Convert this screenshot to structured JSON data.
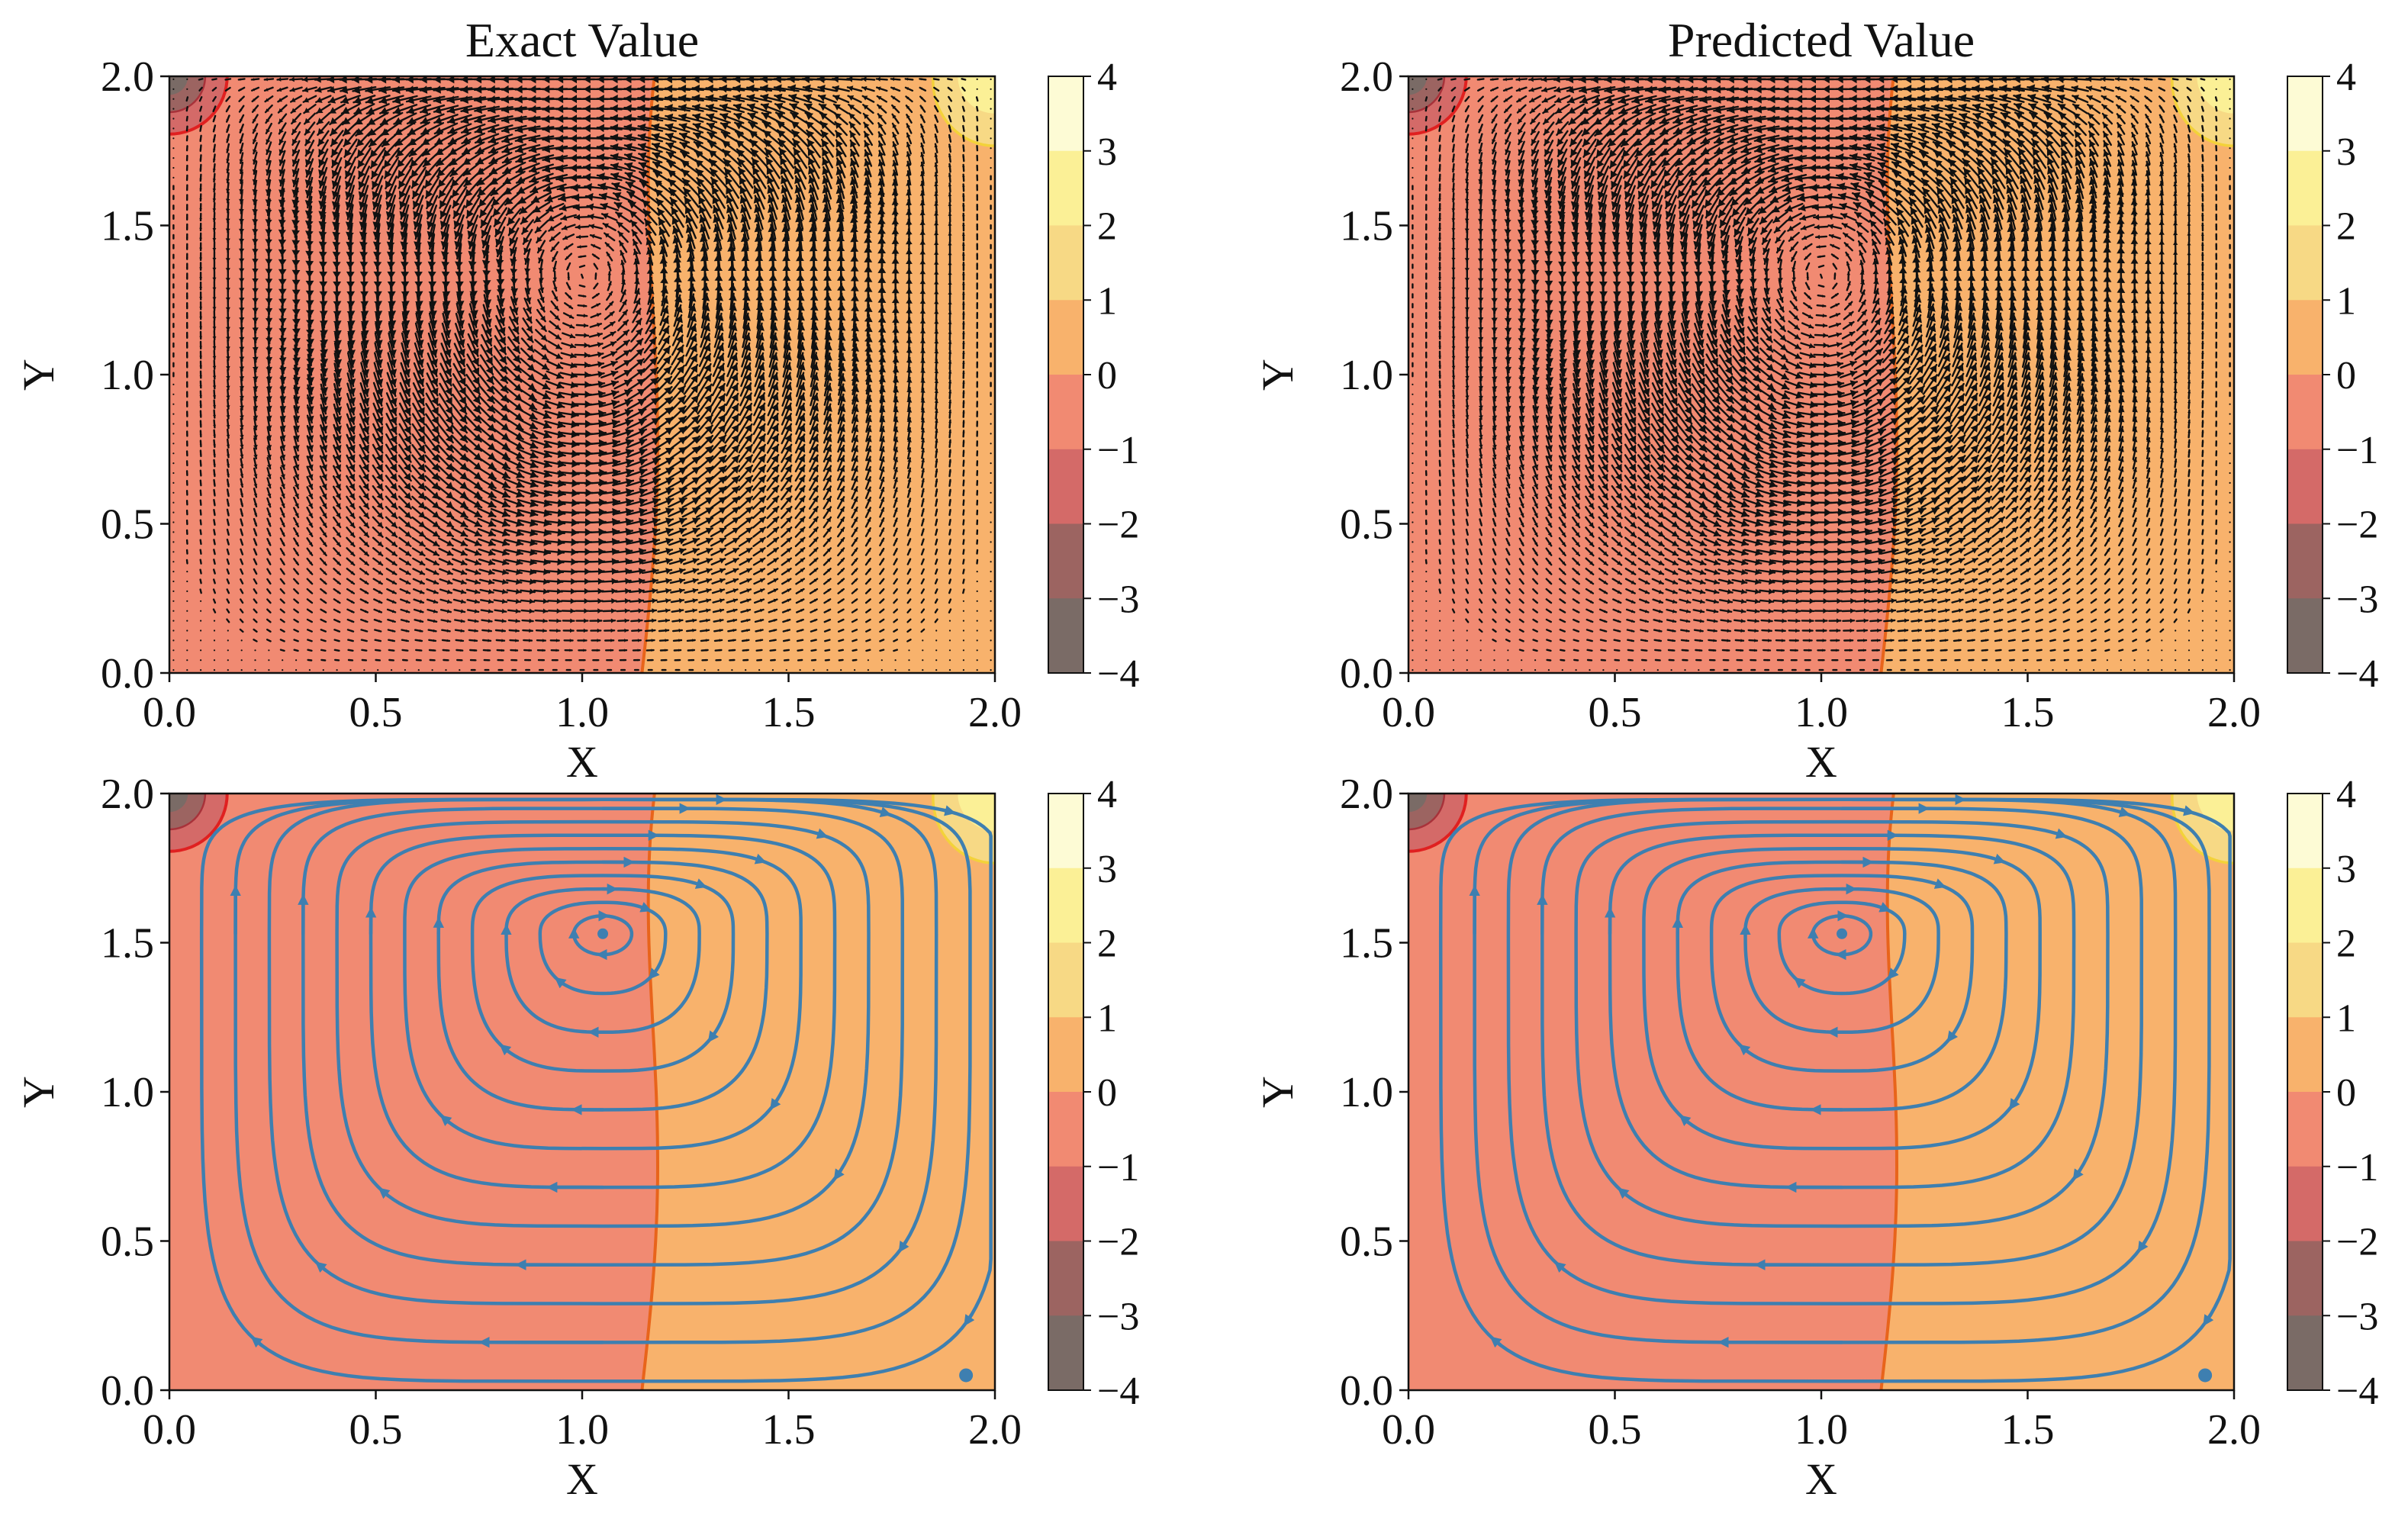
{
  "figure": {
    "colorbar_ticks": [
      "4",
      "3",
      "2",
      "1",
      "0",
      "−1",
      "−2",
      "−3",
      "−4"
    ],
    "colormap": "YlOrRd (alpha 0.6)",
    "quiver_color": "#111111",
    "streamline_color": "#3e7fb0",
    "zero_contour_color": "#e8641b",
    "low_contour_color": "#e02020",
    "high_contour_color": "#f3d23a",
    "band_colors": [
      "#7a6b66",
      "#9c6461",
      "#d46a68",
      "#f18a72",
      "#f8b26c",
      "#f7d985",
      "#fbf096",
      "#fdfbd5"
    ]
  },
  "chart_data": [
    {
      "type": "heatmap",
      "plot": "pressure field with velocity vectors",
      "title": "Exact Value",
      "xlabel": "X",
      "ylabel": "Y",
      "xlim": [
        0,
        2
      ],
      "ylim": [
        0,
        2
      ],
      "xticks": [
        "0.0",
        "0.5",
        "1.0",
        "1.5",
        "2.0"
      ],
      "yticks": [
        "0.0",
        "0.5",
        "1.0",
        "1.5",
        "2.0"
      ],
      "colorbar_range": [
        -4,
        4
      ],
      "overlay": "quiver"
    },
    {
      "type": "heatmap",
      "plot": "pressure field with velocity vectors",
      "title": "Predicted Value",
      "xlabel": "X",
      "ylabel": "Y",
      "xlim": [
        0,
        2
      ],
      "ylim": [
        0,
        2
      ],
      "xticks": [
        "0.0",
        "0.5",
        "1.0",
        "1.5",
        "2.0"
      ],
      "yticks": [
        "0.0",
        "0.5",
        "1.0",
        "1.5",
        "2.0"
      ],
      "colorbar_range": [
        -4,
        4
      ],
      "overlay": "quiver"
    },
    {
      "type": "heatmap",
      "plot": "pressure field with streamlines",
      "title": "",
      "xlabel": "X",
      "ylabel": "Y",
      "xlim": [
        0,
        2
      ],
      "ylim": [
        0,
        2
      ],
      "xticks": [
        "0.0",
        "0.5",
        "1.0",
        "1.5",
        "2.0"
      ],
      "yticks": [
        "0.0",
        "0.5",
        "1.0",
        "1.5",
        "2.0"
      ],
      "colorbar_range": [
        -4,
        4
      ],
      "overlay": "streamlines",
      "vortex_center": [
        1.05,
        1.53
      ]
    },
    {
      "type": "heatmap",
      "plot": "pressure field with streamlines",
      "title": "",
      "xlabel": "X",
      "ylabel": "Y",
      "xlim": [
        0,
        2
      ],
      "ylim": [
        0,
        2
      ],
      "xticks": [
        "0.0",
        "0.5",
        "1.0",
        "1.5",
        "2.0"
      ],
      "yticks": [
        "0.0",
        "0.5",
        "1.0",
        "1.5",
        "2.0"
      ],
      "colorbar_range": [
        -4,
        4
      ],
      "overlay": "streamlines",
      "vortex_center": [
        1.05,
        1.53
      ]
    }
  ]
}
